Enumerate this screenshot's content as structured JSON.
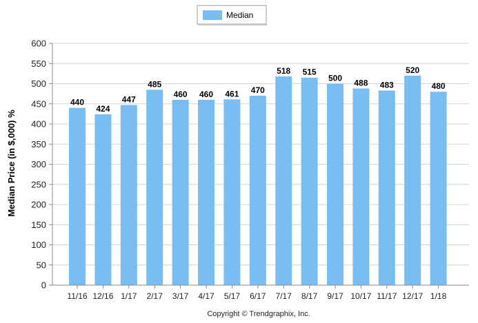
{
  "chart_data": {
    "type": "bar",
    "categories": [
      "11/16",
      "12/16",
      "1/17",
      "2/17",
      "3/17",
      "4/17",
      "5/17",
      "6/17",
      "7/17",
      "8/17",
      "9/17",
      "10/17",
      "11/17",
      "12/17",
      "1/18"
    ],
    "series": [
      {
        "name": "Median",
        "values": [
          440,
          424,
          447,
          485,
          460,
          460,
          461,
          470,
          518,
          515,
          500,
          488,
          483,
          520,
          480
        ]
      }
    ],
    "data_labels": [
      "440",
      "424",
      "447",
      "485",
      "460",
      "460",
      "461",
      "470",
      "518",
      "515",
      "500",
      "488",
      "483",
      "520",
      "480"
    ],
    "ylabel": "Median Price (in $,000) %",
    "xlabel": "",
    "ylim": [
      0,
      600
    ],
    "y_ticks": [
      0,
      50,
      100,
      150,
      200,
      250,
      300,
      350,
      400,
      450,
      500,
      550,
      600
    ],
    "grid": true,
    "legend": {
      "position": "top-center",
      "entries": [
        "Median"
      ]
    },
    "colors": {
      "bar": "#79BEF3",
      "grid": "#D4D4D4",
      "axis": "#8A8A8A"
    }
  },
  "footer": {
    "copyright": "Copyright © Trendgraphix, Inc."
  }
}
